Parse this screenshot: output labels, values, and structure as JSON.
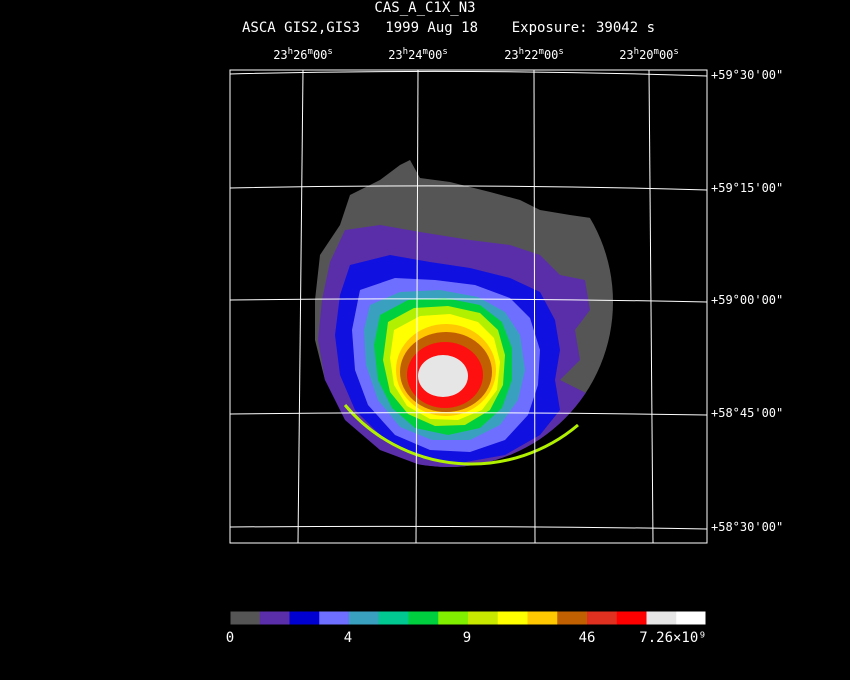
{
  "title": "CAS_A_C1X_N3",
  "subtitle": "ASCA GIS2,GIS3   1999 Aug 18    Exposure: 39042 s",
  "ra_labels": [
    {
      "h": "23",
      "m": "26",
      "s": "00"
    },
    {
      "h": "23",
      "m": "24",
      "s": "00"
    },
    {
      "h": "23",
      "m": "22",
      "s": "00"
    },
    {
      "h": "23",
      "m": "20",
      "s": "00"
    }
  ],
  "dec_labels": [
    "+59°30'00\"",
    "+59°15'00\"",
    "+59°00'00\"",
    "+58°45'00\"",
    "+58°30'00\""
  ],
  "colorbar": {
    "colors": [
      "#555555",
      "#5a2ea8",
      "#0000d0",
      "#6f6fff",
      "#3aa0c0",
      "#00c890",
      "#00d040",
      "#80f000",
      "#c8e800",
      "#ffff00",
      "#ffc800",
      "#c06000",
      "#e03020",
      "#ff0000",
      "#e6e6e6",
      "#ffffff"
    ],
    "labels": [
      "0",
      "4",
      "9",
      "46",
      "7.26×10⁹"
    ]
  },
  "image_colors": {
    "bg_gray": "#555555",
    "purple": "#5a2ea8",
    "blue": "#1010e0",
    "lightblue": "#6f6fff",
    "teal": "#3aa0c0",
    "green": "#00d040",
    "yellowgreen": "#b0f000",
    "yellow": "#ffff00",
    "orange": "#ffc800",
    "brown": "#c06000",
    "red": "#ff1010",
    "core": "#e6e6e6"
  }
}
